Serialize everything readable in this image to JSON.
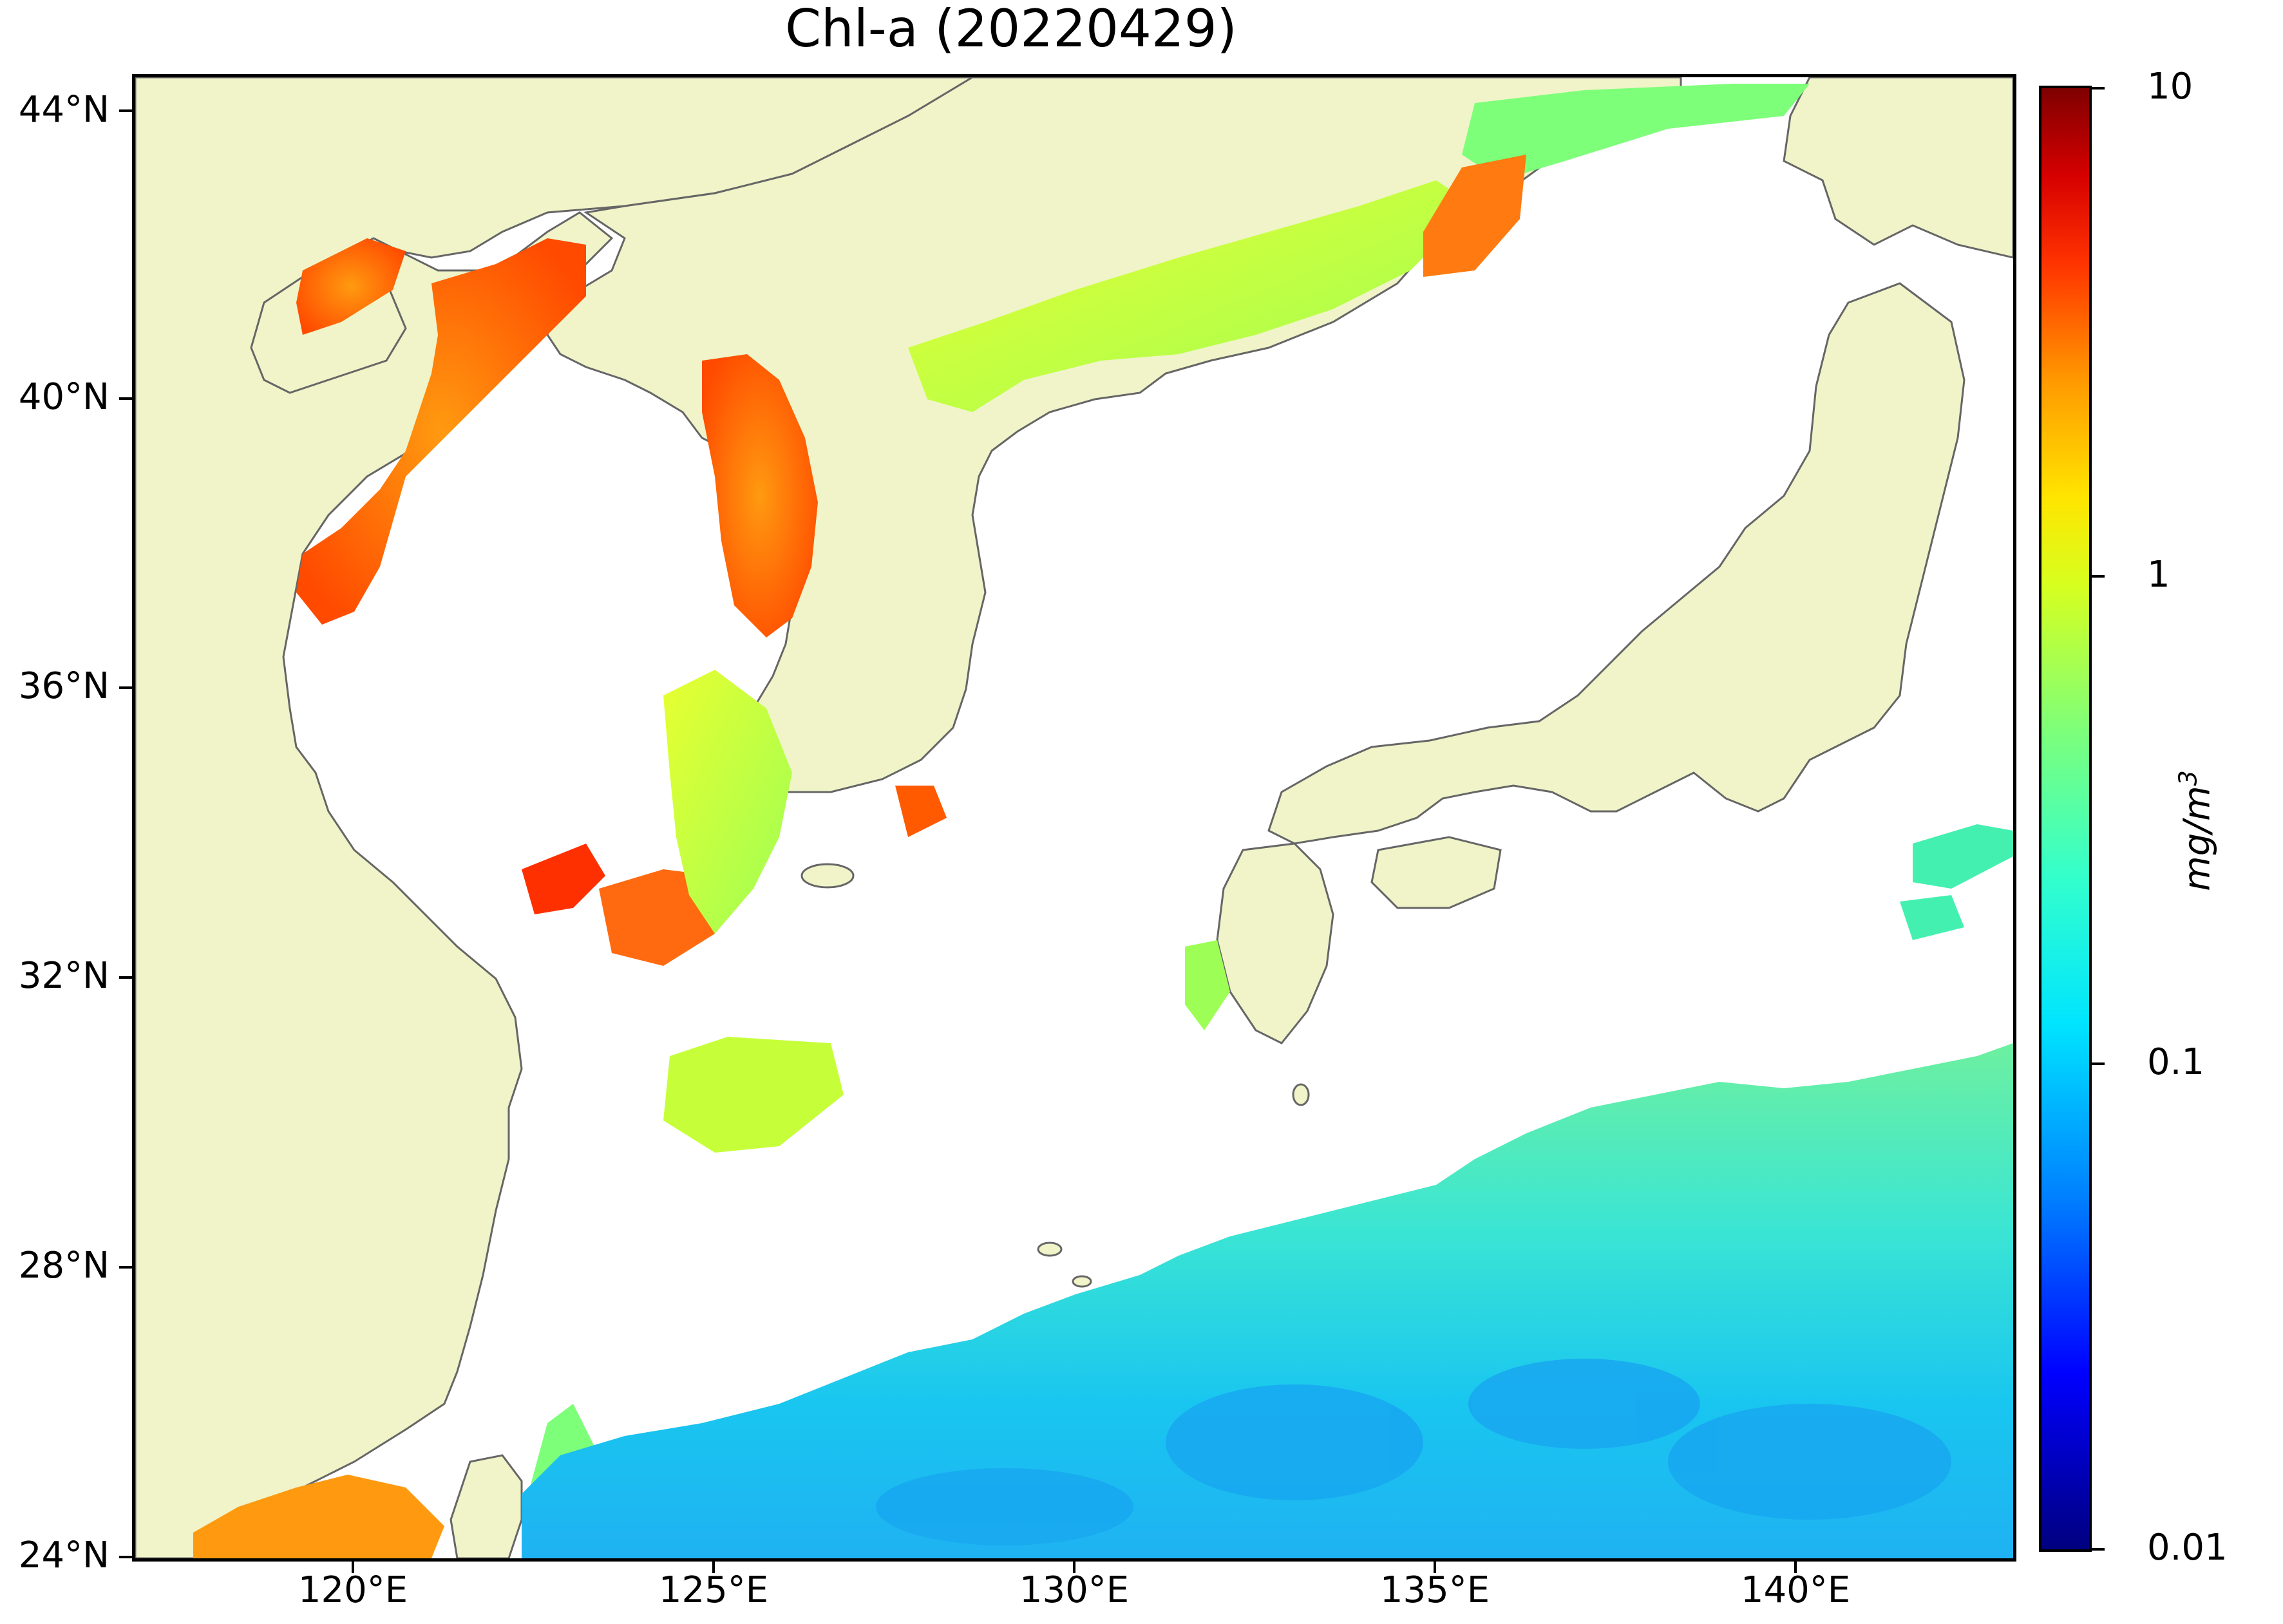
{
  "title": "Chl-a (20220429)",
  "map": {
    "land_color": "#f0f4c8",
    "no_data_color": "#ffffff",
    "coast_color": "#666666",
    "lat_labels": [
      "44°N",
      "40°N",
      "36°N",
      "32°N",
      "28°N",
      "24°N"
    ],
    "lon_labels": [
      "120°E",
      "125°E",
      "130°E",
      "135°E",
      "140°E"
    ]
  },
  "colorbar": {
    "scale": "log",
    "min": 0.01,
    "max": 10,
    "colormap": "jet",
    "tick_labels": [
      "10",
      "1",
      "0.1",
      "0.01"
    ],
    "unit": "mg/m",
    "unit_superscript": "3"
  }
}
